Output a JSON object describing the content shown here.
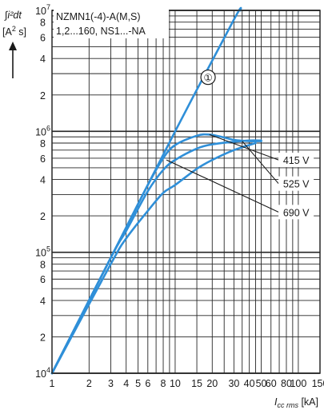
{
  "chart_data": {
    "type": "line",
    "x_scale": "log",
    "y_scale": "log",
    "xlim": [
      1,
      150
    ],
    "ylim": [
      10000,
      10000000
    ],
    "grid": true,
    "title_lines": [
      "NZMN1(-4)-A(M,S)",
      "1,2...160, NS1...-NA"
    ],
    "ylabel": {
      "integral": "∫i²dt",
      "unit_open": "[A",
      "unit_exp": "2",
      "unit_close": " s]"
    },
    "xlabel": {
      "main": "I",
      "sub": "cc rms",
      "unit": " [kA]"
    },
    "x_ticks": [
      {
        "v": 1,
        "t": "1"
      },
      {
        "v": 2,
        "t": "2"
      },
      {
        "v": 3,
        "t": "3"
      },
      {
        "v": 4,
        "t": "4"
      },
      {
        "v": 5,
        "t": "5"
      },
      {
        "v": 6,
        "t": "6"
      },
      {
        "v": 8,
        "t": "8"
      },
      {
        "v": 10,
        "t": "10"
      },
      {
        "v": 15,
        "t": "15"
      },
      {
        "v": 20,
        "t": "20"
      },
      {
        "v": 30,
        "t": "30"
      },
      {
        "v": 40,
        "t": "40"
      },
      {
        "v": 50,
        "t": "50"
      },
      {
        "v": 60,
        "t": "60"
      },
      {
        "v": 80,
        "t": "80"
      },
      {
        "v": 100,
        "t": "100"
      },
      {
        "v": 150,
        "t": "150"
      }
    ],
    "y_ticks": [
      {
        "v": 10000,
        "base": "10",
        "exp": "4"
      },
      {
        "v": 20000,
        "t": "2"
      },
      {
        "v": 40000,
        "t": "4"
      },
      {
        "v": 60000,
        "t": "6"
      },
      {
        "v": 80000,
        "t": "8"
      },
      {
        "v": 100000,
        "base": "10",
        "exp": "5"
      },
      {
        "v": 200000,
        "t": "2"
      },
      {
        "v": 400000,
        "t": "4"
      },
      {
        "v": 600000,
        "t": "6"
      },
      {
        "v": 800000,
        "t": "8"
      },
      {
        "v": 1000000,
        "base": "10",
        "exp": "6"
      },
      {
        "v": 2000000,
        "t": "2"
      },
      {
        "v": 4000000,
        "t": "4"
      },
      {
        "v": 6000000,
        "t": "6"
      },
      {
        "v": 8000000,
        "t": "8"
      },
      {
        "v": 10000000,
        "base": "10",
        "exp": "7"
      }
    ],
    "x_grid": [
      1,
      2,
      3,
      4,
      5,
      6,
      7,
      8,
      9,
      10,
      15,
      20,
      25,
      30,
      35,
      40,
      45,
      50,
      60,
      70,
      80,
      90,
      100,
      150
    ],
    "y_grid_minor": [
      20000,
      30000,
      40000,
      50000,
      60000,
      70000,
      80000,
      90000,
      200000,
      300000,
      400000,
      500000,
      600000,
      700000,
      800000,
      900000,
      2000000,
      3000000,
      4000000,
      5000000,
      6000000,
      7000000,
      8000000,
      9000000
    ],
    "y_grid_major": [
      10000,
      100000,
      1000000,
      10000000
    ],
    "series": [
      {
        "name": "①",
        "x": [
          1,
          3,
          10,
          30,
          34
        ],
        "y": [
          10000,
          90000,
          1000000,
          8400000,
          10000000
        ]
      },
      {
        "name": "415 V",
        "x": [
          1,
          3,
          4,
          6,
          8,
          10,
          15,
          19,
          25,
          30,
          40,
          50
        ],
        "y": [
          10000,
          90000,
          160000,
          360000,
          600000,
          770000,
          920000,
          940000,
          890000,
          850000,
          830000,
          830000
        ]
      },
      {
        "name": "525 V",
        "x": [
          1,
          3,
          4,
          6,
          8,
          10,
          15,
          20,
          30,
          40,
          50
        ],
        "y": [
          10000,
          90000,
          150000,
          320000,
          480000,
          580000,
          720000,
          780000,
          820000,
          840000,
          840000
        ]
      },
      {
        "name": "690 V",
        "x": [
          1,
          3,
          4,
          6,
          8,
          10,
          15,
          20,
          30,
          45
        ],
        "y": [
          10000,
          80000,
          130000,
          220000,
          310000,
          360000,
          490000,
          580000,
          700000,
          800000
        ]
      }
    ],
    "annotations": [
      {
        "text": "①",
        "x": 18.5,
        "y": 2800000,
        "circle": true
      },
      {
        "text": "415 V",
        "x": 96,
        "y": 580000,
        "leader_from": [
          19,
          940000
        ]
      },
      {
        "text": "525 V",
        "x": 96,
        "y": 370000,
        "leader_from": [
          35,
          830000
        ]
      },
      {
        "text": "690 V",
        "x": 96,
        "y": 215000,
        "leader_from": [
          8.5,
          580000
        ]
      }
    ],
    "colors": {
      "curve": "#2f8fd8",
      "grid": "#262626",
      "leader": "#1a1a1a"
    }
  }
}
